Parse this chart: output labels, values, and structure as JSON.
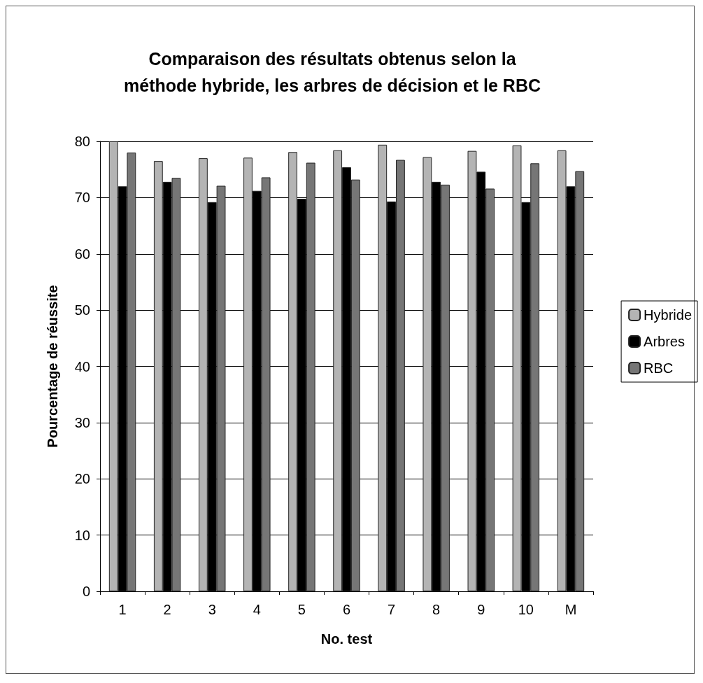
{
  "chart_data": {
    "type": "bar",
    "title": "Comparaison des résultats obtenus selon la\nméthode hybride, les arbres de décision et le RBC",
    "xlabel": "No. test",
    "ylabel": "Pourcentage de réussite",
    "categories": [
      "1",
      "2",
      "3",
      "4",
      "5",
      "6",
      "7",
      "8",
      "9",
      "10",
      "M"
    ],
    "series": [
      {
        "name": "Hybride",
        "color": "#b4b4b4",
        "values": [
          80,
          76.5,
          77,
          77.1,
          78.1,
          78.4,
          79.4,
          77.2,
          78.3,
          79.3,
          78.4
        ]
      },
      {
        "name": "Arbres",
        "color": "#000000",
        "values": [
          72,
          72.8,
          69.2,
          71.2,
          69.8,
          75.4,
          69.3,
          72.8,
          74.6,
          69.2,
          72
        ]
      },
      {
        "name": "RBC",
        "color": "#767676",
        "values": [
          78,
          73.5,
          72.1,
          73.6,
          76.2,
          73.2,
          76.7,
          72.3,
          71.6,
          76.1,
          74.7
        ]
      }
    ],
    "ylim": [
      0,
      80
    ],
    "yticks": [
      0,
      10,
      20,
      30,
      40,
      50,
      60,
      70,
      80
    ],
    "grid": "y",
    "legend": "right"
  }
}
